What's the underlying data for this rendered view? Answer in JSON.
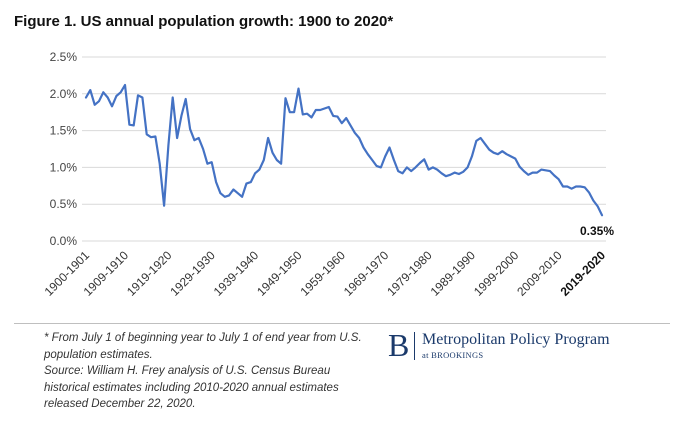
{
  "title": "Figure 1. US annual population growth: 1900 to 2020*",
  "notes": [
    "* From July 1 of beginning year to July 1 of end year from U.S. population estimates.",
    "Source: William H. Frey analysis of U.S. Census Bureau historical estimates including 2010-2020 annual estimates released December 22, 2020."
  ],
  "logo": {
    "mark": "B",
    "name": "Metropolitan Policy Program",
    "sub": "at BROOKINGS"
  },
  "colors": {
    "series": "#4472c4",
    "brand": "#1b3a6b"
  },
  "chart_data": {
    "type": "line",
    "title": "Figure 1. US annual population growth: 1900 to 2020*",
    "xlabel": "",
    "ylabel": "",
    "ylim": [
      0,
      2.5
    ],
    "y_ticks": [
      "0.0%",
      "0.5%",
      "1.0%",
      "1.5%",
      "2.0%",
      "2.5%"
    ],
    "y_tick_values": [
      0,
      0.5,
      1.0,
      1.5,
      2.0,
      2.5
    ],
    "x_tick_labels": [
      "1900-1901",
      "1909-1910",
      "1919-1920",
      "1929-1930",
      "1939-1940",
      "1949-1950",
      "1959-1960",
      "1969-1970",
      "1979-1980",
      "1989-1990",
      "1999-2000",
      "2009-2010",
      "2019-2020"
    ],
    "grid": "horizontal",
    "annotation": {
      "label": "0.35%",
      "period": "2019-2020"
    },
    "series": [
      {
        "periods_start_year": [
          1900,
          1901,
          1902,
          1903,
          1904,
          1905,
          1906,
          1907,
          1908,
          1909,
          1910,
          1911,
          1912,
          1913,
          1914,
          1915,
          1916,
          1917,
          1918,
          1919,
          1920,
          1921,
          1922,
          1923,
          1924,
          1925,
          1926,
          1927,
          1928,
          1929,
          1930,
          1931,
          1932,
          1933,
          1934,
          1935,
          1936,
          1937,
          1938,
          1939,
          1940,
          1941,
          1942,
          1943,
          1944,
          1945,
          1946,
          1947,
          1948,
          1949,
          1950,
          1951,
          1952,
          1953,
          1954,
          1955,
          1956,
          1957,
          1958,
          1959,
          1960,
          1961,
          1962,
          1963,
          1964,
          1965,
          1966,
          1967,
          1968,
          1969,
          1970,
          1971,
          1972,
          1973,
          1974,
          1975,
          1976,
          1977,
          1978,
          1979,
          1980,
          1981,
          1982,
          1983,
          1984,
          1985,
          1986,
          1987,
          1988,
          1989,
          1990,
          1991,
          1992,
          1993,
          1994,
          1995,
          1996,
          1997,
          1998,
          1999,
          2000,
          2001,
          2002,
          2003,
          2004,
          2005,
          2006,
          2007,
          2008,
          2009,
          2010,
          2011,
          2012,
          2013,
          2014,
          2015,
          2016,
          2017,
          2018,
          2019
        ],
        "values": [
          1.95,
          2.05,
          1.85,
          1.9,
          2.02,
          1.95,
          1.83,
          1.97,
          2.02,
          2.12,
          1.58,
          1.57,
          1.98,
          1.95,
          1.45,
          1.41,
          1.42,
          1.05,
          0.48,
          1.3,
          1.95,
          1.4,
          1.7,
          1.93,
          1.52,
          1.37,
          1.4,
          1.25,
          1.05,
          1.07,
          0.8,
          0.65,
          0.6,
          0.62,
          0.7,
          0.65,
          0.6,
          0.78,
          0.8,
          0.92,
          0.97,
          1.1,
          1.4,
          1.2,
          1.1,
          1.05,
          1.94,
          1.75,
          1.75,
          2.07,
          1.72,
          1.73,
          1.68,
          1.78,
          1.78,
          1.8,
          1.82,
          1.7,
          1.69,
          1.6,
          1.67,
          1.57,
          1.47,
          1.4,
          1.27,
          1.18,
          1.1,
          1.02,
          1.0,
          1.15,
          1.27,
          1.1,
          0.95,
          0.92,
          1.0,
          0.95,
          1.0,
          1.06,
          1.11,
          0.97,
          1.0,
          0.97,
          0.92,
          0.88,
          0.9,
          0.93,
          0.91,
          0.94,
          1.0,
          1.15,
          1.36,
          1.4,
          1.32,
          1.24,
          1.2,
          1.18,
          1.22,
          1.18,
          1.15,
          1.12,
          1.01,
          0.95,
          0.9,
          0.93,
          0.93,
          0.97,
          0.96,
          0.95,
          0.89,
          0.84,
          0.74,
          0.74,
          0.71,
          0.74,
          0.74,
          0.73,
          0.66,
          0.55,
          0.47,
          0.35
        ]
      }
    ]
  }
}
